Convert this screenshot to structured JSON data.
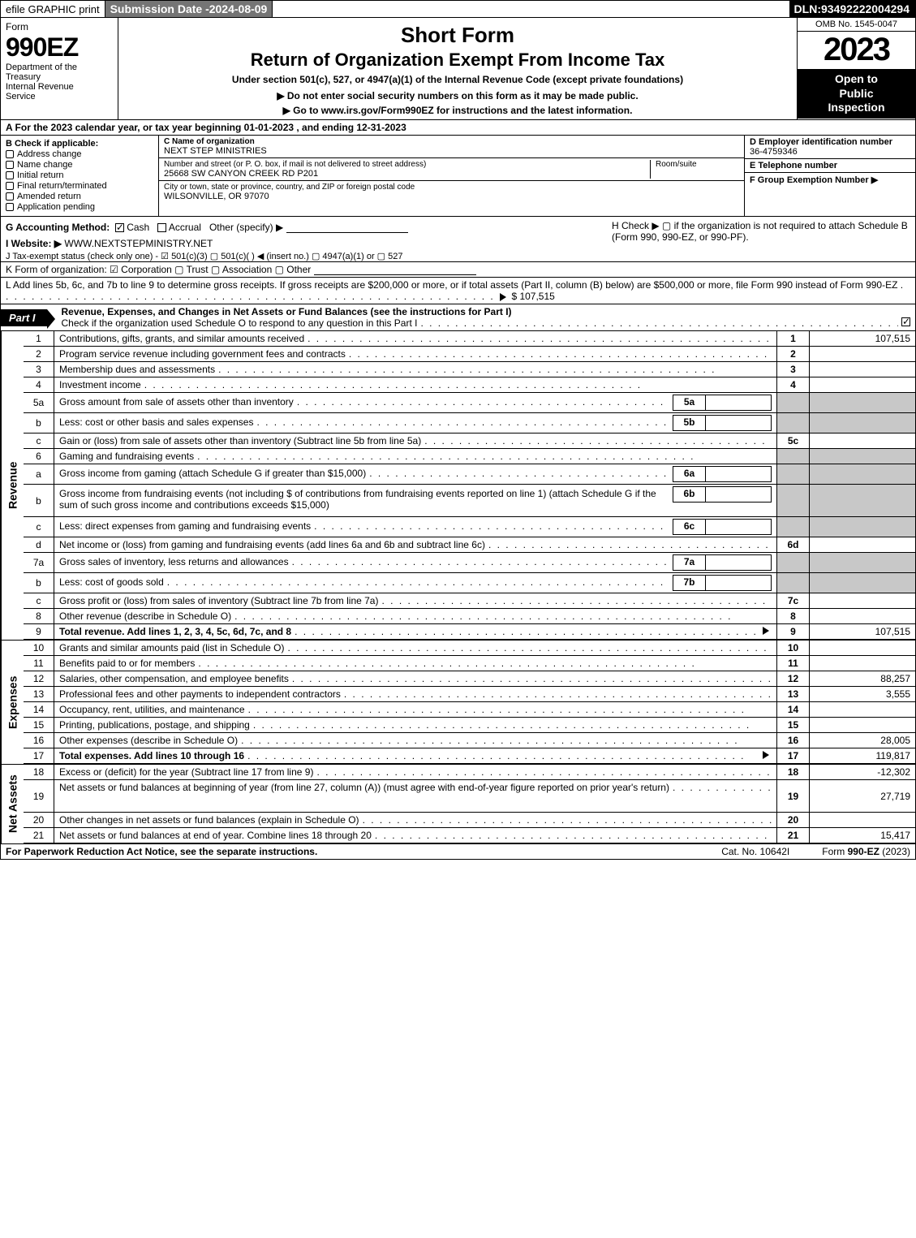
{
  "topbar": {
    "efile_label": "efile GRAPHIC print",
    "submission_label": "Submission Date - ",
    "submission_date": "2024-08-09",
    "dln_label": "DLN: ",
    "dln": "93492222004294"
  },
  "header": {
    "form_label": "Form",
    "form_number": "990EZ",
    "dept": "Department of the Treasury\nInternal Revenue Service",
    "short_form": "Short Form",
    "return_line": "Return of Organization Exempt From Income Tax",
    "under_section": "Under section 501(c), 527, or 4947(a)(1) of the Internal Revenue Code (except private foundations)",
    "do_not": "▶ Do not enter social security numbers on this form as it may be made public.",
    "go_to": "▶ Go to www.irs.gov/Form990EZ for instructions and the latest information.",
    "omb": "OMB No. 1545-0047",
    "year": "2023",
    "open_to": "Open to Public Inspection"
  },
  "A": {
    "text": "A  For the 2023 calendar year, or tax year beginning 01-01-2023 , and ending 12-31-2023"
  },
  "B": {
    "label": "B  Check if applicable:",
    "opts": [
      "Address change",
      "Name change",
      "Initial return",
      "Final return/terminated",
      "Amended return",
      "Application pending"
    ]
  },
  "C": {
    "name_label": "C Name of organization",
    "name": "NEXT STEP MINISTRIES",
    "street_label": "Number and street (or P. O. box, if mail is not delivered to street address)",
    "street": "25668 SW CANYON CREEK RD P201",
    "room_label": "Room/suite",
    "room": "",
    "city_label": "City or town, state or province, country, and ZIP or foreign postal code",
    "city": "WILSONVILLE, OR  97070"
  },
  "D": {
    "ein_label": "D Employer identification number",
    "ein": "36-4759346",
    "tel_label": "E Telephone number",
    "tel": "",
    "grp_label": "F Group Exemption Number  ▶",
    "grp": ""
  },
  "G": {
    "label": "G Accounting Method:",
    "cash": "Cash",
    "accrual": "Accrual",
    "other": "Other (specify) ▶"
  },
  "H": {
    "text": "H  Check ▶   ▢  if the organization is not required to attach Schedule B (Form 990, 990-EZ, or 990-PF)."
  },
  "I": {
    "label": "I Website: ▶",
    "url": "WWW.NEXTSTEPMINISTRY.NET"
  },
  "J": {
    "text": "J Tax-exempt status (check only one) -  ☑ 501(c)(3)  ▢ 501(c)(  ) ◀ (insert no.)  ▢ 4947(a)(1) or  ▢ 527"
  },
  "K": {
    "text": "K Form of organization:   ☑ Corporation   ▢ Trust   ▢ Association   ▢ Other"
  },
  "L": {
    "text": "L Add lines 5b, 6c, and 7b to line 9 to determine gross receipts. If gross receipts are $200,000 or more, or if total assets (Part II, column (B) below) are $500,000 or more, file Form 990 instead of Form 990-EZ",
    "amount": "$ 107,515"
  },
  "partI": {
    "tab": "Part I",
    "title": "Revenue, Expenses, and Changes in Net Assets or Fund Balances (see the instructions for Part I)",
    "subtitle": "Check if the organization used Schedule O to respond to any question in this Part I"
  },
  "revenue": [
    {
      "n": "1",
      "t": "Contributions, gifts, grants, and similar amounts received",
      "rn": "1",
      "amt": "107,515"
    },
    {
      "n": "2",
      "t": "Program service revenue including government fees and contracts",
      "rn": "2",
      "amt": ""
    },
    {
      "n": "3",
      "t": "Membership dues and assessments",
      "rn": "3",
      "amt": ""
    },
    {
      "n": "4",
      "t": "Investment income",
      "rn": "4",
      "amt": ""
    },
    {
      "n": "5a",
      "t": "Gross amount from sale of assets other than inventory",
      "mid": "5a",
      "midv": "",
      "grey": true
    },
    {
      "n": "b",
      "t": "Less: cost or other basis and sales expenses",
      "mid": "5b",
      "midv": "",
      "grey": true
    },
    {
      "n": "c",
      "t": "Gain or (loss) from sale of assets other than inventory (Subtract line 5b from line 5a)",
      "rn": "5c",
      "amt": ""
    },
    {
      "n": "6",
      "t": "Gaming and fundraising events",
      "grey": true,
      "noamt": true
    },
    {
      "n": "a",
      "t": "Gross income from gaming (attach Schedule G if greater than $15,000)",
      "mid": "6a",
      "midv": "",
      "grey": true
    },
    {
      "n": "b",
      "t": "Gross income from fundraising events (not including $                    of contributions from fundraising events reported on line 1) (attach Schedule G if the sum of such gross income and contributions exceeds $15,000)",
      "mid": "6b",
      "midv": "",
      "grey": true,
      "tall": true
    },
    {
      "n": "c",
      "t": "Less: direct expenses from gaming and fundraising events",
      "mid": "6c",
      "midv": "",
      "grey": true
    },
    {
      "n": "d",
      "t": "Net income or (loss) from gaming and fundraising events (add lines 6a and 6b and subtract line 6c)",
      "rn": "6d",
      "amt": ""
    },
    {
      "n": "7a",
      "t": "Gross sales of inventory, less returns and allowances",
      "mid": "7a",
      "midv": "",
      "grey": true
    },
    {
      "n": "b",
      "t": "Less: cost of goods sold",
      "mid": "7b",
      "midv": "",
      "grey": true
    },
    {
      "n": "c",
      "t": "Gross profit or (loss) from sales of inventory (Subtract line 7b from line 7a)",
      "rn": "7c",
      "amt": ""
    },
    {
      "n": "8",
      "t": "Other revenue (describe in Schedule O)",
      "rn": "8",
      "amt": ""
    },
    {
      "n": "9",
      "t": "Total revenue. Add lines 1, 2, 3, 4, 5c, 6d, 7c, and 8",
      "rn": "9",
      "amt": "107,515",
      "bold": true,
      "tri": true
    }
  ],
  "expenses": [
    {
      "n": "10",
      "t": "Grants and similar amounts paid (list in Schedule O)",
      "rn": "10",
      "amt": ""
    },
    {
      "n": "11",
      "t": "Benefits paid to or for members",
      "rn": "11",
      "amt": ""
    },
    {
      "n": "12",
      "t": "Salaries, other compensation, and employee benefits",
      "rn": "12",
      "amt": "88,257"
    },
    {
      "n": "13",
      "t": "Professional fees and other payments to independent contractors",
      "rn": "13",
      "amt": "3,555"
    },
    {
      "n": "14",
      "t": "Occupancy, rent, utilities, and maintenance",
      "rn": "14",
      "amt": ""
    },
    {
      "n": "15",
      "t": "Printing, publications, postage, and shipping",
      "rn": "15",
      "amt": ""
    },
    {
      "n": "16",
      "t": "Other expenses (describe in Schedule O)",
      "rn": "16",
      "amt": "28,005"
    },
    {
      "n": "17",
      "t": "Total expenses. Add lines 10 through 16",
      "rn": "17",
      "amt": "119,817",
      "bold": true,
      "tri": true
    }
  ],
  "netassets": [
    {
      "n": "18",
      "t": "Excess or (deficit) for the year (Subtract line 17 from line 9)",
      "rn": "18",
      "amt": "-12,302"
    },
    {
      "n": "19",
      "t": "Net assets or fund balances at beginning of year (from line 27, column (A)) (must agree with end-of-year figure reported on prior year's return)",
      "rn": "19",
      "amt": "27,719",
      "tall": true
    },
    {
      "n": "20",
      "t": "Other changes in net assets or fund balances (explain in Schedule O)",
      "rn": "20",
      "amt": ""
    },
    {
      "n": "21",
      "t": "Net assets or fund balances at end of year. Combine lines 18 through 20",
      "rn": "21",
      "amt": "15,417"
    }
  ],
  "vlabels": {
    "rev": "Revenue",
    "exp": "Expenses",
    "net": "Net Assets"
  },
  "footer": {
    "left": "For Paperwork Reduction Act Notice, see the separate instructions.",
    "mid": "Cat. No. 10642I",
    "right": "Form 990-EZ (2023)"
  },
  "colors": {
    "grey": "#c8c8c8",
    "black": "#000000",
    "darkgrey": "#757575",
    "link": "#004b8d"
  }
}
